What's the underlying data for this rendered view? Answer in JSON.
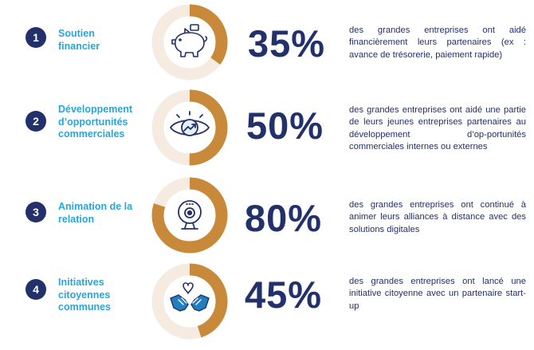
{
  "colors": {
    "navy": "#22306b",
    "cyan": "#27a6d8",
    "gold": "#c8893b",
    "ring_track": "#f5ebe0",
    "icon_blue": "#1f7fbf"
  },
  "items": [
    {
      "number": "1",
      "title": "Soutien financier",
      "percent": "35%",
      "value": 35,
      "icon": "piggy-bank-icon",
      "description": "des grandes entreprises ont aidé financièrement leurs partenaires (ex : avance de trésorerie, paiement rapide)"
    },
    {
      "number": "2",
      "title": "Développement d’opportunités commerciales",
      "percent": "50%",
      "value": 50,
      "icon": "eye-growth-icon",
      "description": "des grandes entreprises ont aidé une partie de leurs jeunes entreprises partenaires au développement d’op-portunités commerciales internes ou externes"
    },
    {
      "number": "3",
      "title": "Animation de la relation",
      "percent": "80%",
      "value": 80,
      "icon": "webcam-icon",
      "description": "des grandes entreprises ont continué à animer leurs alliances à distance avec des solutions digitales"
    },
    {
      "number": "4",
      "title": "Initiatives citoyennes communes",
      "percent": "45%",
      "value": 45,
      "icon": "hands-heart-icon",
      "description": "des grandes entreprises ont lancé une initiative citoyenne avec un partenaire start-up"
    }
  ],
  "chart_data": {
    "type": "pie",
    "categories": [
      "Soutien financier",
      "Développement d’opportunités commerciales",
      "Animation de la relation",
      "Initiatives citoyennes communes"
    ],
    "values": [
      35,
      50,
      80,
      45
    ]
  }
}
